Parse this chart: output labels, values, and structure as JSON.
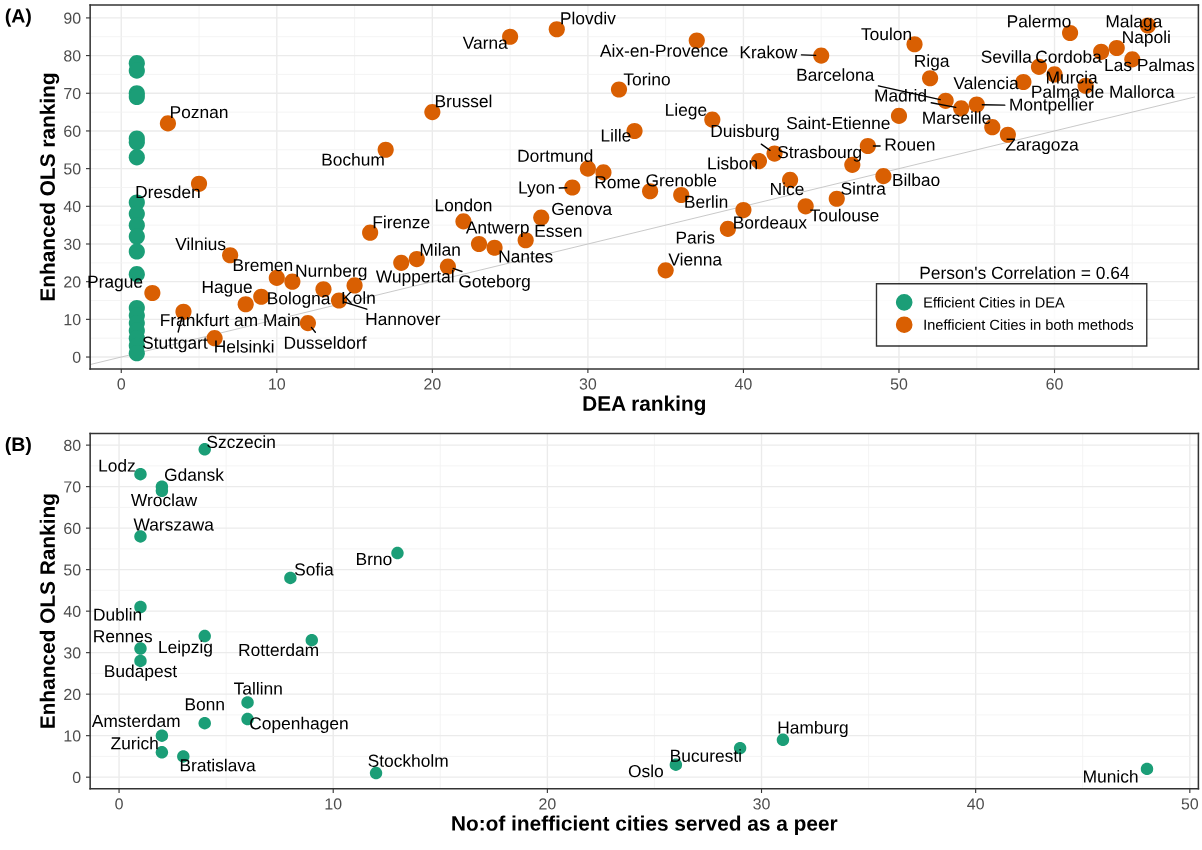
{
  "chart_data": [
    {
      "type": "scatter",
      "title": "(A)",
      "xlabel": "DEA ranking",
      "ylabel": "Enhanced OLS ranking",
      "xlim": [
        -2,
        69.25
      ],
      "ylim": [
        -3.15,
        93.4
      ],
      "xticks": [
        0,
        10,
        20,
        30,
        40,
        50,
        60
      ],
      "yticks": [
        0,
        10,
        20,
        30,
        40,
        50,
        60,
        70,
        80,
        90
      ],
      "grid": true,
      "legend": "bottom right",
      "marker": "circle",
      "series": [
        {
          "type": "line",
          "color": "#bebebe",
          "marker": "none",
          "x": [
            -2,
            69
          ],
          "values": [
            -2,
            69
          ]
        },
        {
          "name": "Efficient Cities in DEA",
          "color": "#1b9e77",
          "x": [
            1,
            1,
            1,
            1,
            1,
            1,
            1,
            1,
            1,
            1,
            1,
            1,
            1,
            1,
            1,
            1,
            1,
            1,
            1,
            1
          ],
          "values": [
            78,
            76,
            70,
            69,
            58,
            57,
            53,
            41,
            38,
            35,
            32,
            28,
            22,
            13,
            11,
            9,
            7,
            5,
            3,
            1
          ]
        },
        {
          "name": "Inefficient Cities in both methods",
          "color": "#d95f02",
          "x": [
            3,
            5,
            2,
            4,
            8,
            6,
            7,
            9,
            10,
            11,
            12,
            13,
            14,
            15,
            16,
            17,
            18,
            19,
            20,
            21,
            22,
            23,
            24,
            25,
            26,
            27,
            28,
            29,
            30,
            31,
            32,
            33,
            34,
            35,
            36,
            37,
            38,
            39,
            40,
            41,
            42,
            43,
            44,
            45,
            46,
            47,
            48,
            49,
            50,
            51,
            52,
            53,
            54,
            55,
            56,
            57,
            58,
            59,
            60,
            61,
            62,
            63,
            64,
            65,
            66
          ],
          "values": [
            62,
            46,
            17,
            12,
            14,
            5,
            27,
            16,
            21,
            20,
            9,
            18,
            15,
            19,
            33,
            55,
            25,
            26,
            65,
            24,
            36,
            30,
            29,
            85,
            31,
            37,
            87,
            45,
            50,
            49,
            71,
            60,
            44,
            23,
            43,
            84,
            63,
            34,
            39,
            52,
            54,
            47,
            40,
            80,
            42,
            51,
            56,
            48,
            64,
            83,
            74,
            68,
            66,
            67,
            61,
            59,
            73,
            77,
            75,
            86,
            72,
            81,
            82,
            79,
            88
          ]
        }
      ],
      "annotations": [
        {
          "text": "Poznan",
          "x": 3,
          "y": 62
        },
        {
          "text": "Dresden",
          "x": 5,
          "y": 46
        },
        {
          "text": "Prague",
          "x": 2,
          "y": 17
        },
        {
          "text": "Stuttgart",
          "x": 4,
          "y": 12
        },
        {
          "text": "Frankfurt am Main",
          "x": 8,
          "y": 14
        },
        {
          "text": "Helsinki",
          "x": 6,
          "y": 5
        },
        {
          "text": "Vilnius",
          "x": 7,
          "y": 27
        },
        {
          "text": "Hague",
          "x": 9,
          "y": 16
        },
        {
          "text": "Bremen",
          "x": 10,
          "y": 21
        },
        {
          "text": "Bologna",
          "x": 11,
          "y": 20
        },
        {
          "text": "Dusseldorf",
          "x": 12,
          "y": 9
        },
        {
          "text": "Nurnberg",
          "x": 13,
          "y": 18
        },
        {
          "text": "Hannover",
          "x": 14,
          "y": 15
        },
        {
          "text": "Koln",
          "x": 15,
          "y": 19
        },
        {
          "text": "Firenze",
          "x": 16,
          "y": 33
        },
        {
          "text": "Bochum",
          "x": 17,
          "y": 55
        },
        {
          "text": "Wuppertal",
          "x": 18,
          "y": 25
        },
        {
          "text": "Milan",
          "x": 19,
          "y": 26
        },
        {
          "text": "Brussel",
          "x": 20,
          "y": 65
        },
        {
          "text": "Goteborg",
          "x": 21,
          "y": 24
        },
        {
          "text": "London",
          "x": 22,
          "y": 36
        },
        {
          "text": "Antwerp",
          "x": 23,
          "y": 30
        },
        {
          "text": "Nantes",
          "x": 24,
          "y": 29
        },
        {
          "text": "Varna",
          "x": 25,
          "y": 85
        },
        {
          "text": "Essen",
          "x": 26,
          "y": 31
        },
        {
          "text": "Genova",
          "x": 27,
          "y": 37
        },
        {
          "text": "Plovdiv",
          "x": 28,
          "y": 87
        },
        {
          "text": "Lyon",
          "x": 29,
          "y": 45
        },
        {
          "text": "Dortmund",
          "x": 30,
          "y": 50
        },
        {
          "text": "Rome",
          "x": 31,
          "y": 49
        },
        {
          "text": "Torino",
          "x": 32,
          "y": 71
        },
        {
          "text": "Lille",
          "x": 33,
          "y": 60
        },
        {
          "text": "Grenoble",
          "x": 34,
          "y": 44
        },
        {
          "text": "Vienna",
          "x": 35,
          "y": 23
        },
        {
          "text": "Berlin",
          "x": 36,
          "y": 43
        },
        {
          "text": "Aix-en-Provence",
          "x": 37,
          "y": 84
        },
        {
          "text": "Liege",
          "x": 38,
          "y": 63
        },
        {
          "text": "Paris",
          "x": 39,
          "y": 34
        },
        {
          "text": "Bordeaux",
          "x": 40,
          "y": 39
        },
        {
          "text": "Lisbon",
          "x": 41,
          "y": 52
        },
        {
          "text": "Duisburg",
          "x": 42,
          "y": 54
        },
        {
          "text": "Nice",
          "x": 43,
          "y": 47
        },
        {
          "text": "Toulouse",
          "x": 44,
          "y": 40
        },
        {
          "text": "Krakow",
          "x": 45,
          "y": 80
        },
        {
          "text": "Sintra",
          "x": 46,
          "y": 42
        },
        {
          "text": "Strasbourg",
          "x": 47,
          "y": 51
        },
        {
          "text": "Rouen",
          "x": 48,
          "y": 56
        },
        {
          "text": "Bilbao",
          "x": 49,
          "y": 48
        },
        {
          "text": "Saint-Etienne",
          "x": 50,
          "y": 64
        },
        {
          "text": "Toulon",
          "x": 51,
          "y": 83
        },
        {
          "text": "Riga",
          "x": 52,
          "y": 74
        },
        {
          "text": "Barcelona",
          "x": 53,
          "y": 68
        },
        {
          "text": "Madrid",
          "x": 54,
          "y": 66
        },
        {
          "text": "Montpellier",
          "x": 55,
          "y": 67
        },
        {
          "text": "Marseille",
          "x": 56,
          "y": 61
        },
        {
          "text": "Zaragoza",
          "x": 57,
          "y": 59
        },
        {
          "text": "Valencia",
          "x": 58,
          "y": 73
        },
        {
          "text": "Sevilla",
          "x": 59,
          "y": 77
        },
        {
          "text": "Murcia",
          "x": 60,
          "y": 75
        },
        {
          "text": "Palermo",
          "x": 61,
          "y": 86
        },
        {
          "text": "Palma de Mallorca",
          "x": 62,
          "y": 72
        },
        {
          "text": "Cordoba",
          "x": 63,
          "y": 81
        },
        {
          "text": "Napoli",
          "x": 64,
          "y": 82
        },
        {
          "text": "Las Palmas",
          "x": 65,
          "y": 79
        },
        {
          "text": "Malaga",
          "x": 66,
          "y": 88
        },
        "Person's Correlation = 0.64"
      ]
    },
    {
      "type": "scatter",
      "title": "(B)",
      "xlabel": "No:of inefficient cities served as a peer",
      "ylabel": "Enhanced OLS Ranking",
      "xlim": [
        -1.35,
        50.4
      ],
      "ylim": [
        -2.8,
        82.8
      ],
      "xticks": [
        0,
        10,
        20,
        30,
        40,
        50
      ],
      "yticks": [
        0,
        10,
        20,
        30,
        40,
        50,
        60,
        70,
        80
      ],
      "grid": true,
      "marker": "circle",
      "series": [
        {
          "color": "#1b9e77",
          "x": [
            4,
            1,
            2,
            2,
            1,
            13,
            8,
            1,
            1,
            1,
            4,
            9,
            6,
            6,
            4,
            2,
            2,
            3,
            12,
            26,
            29,
            31,
            48
          ],
          "values": [
            79,
            73,
            70,
            69,
            58,
            54,
            48,
            41,
            31,
            28,
            34,
            33,
            18,
            14,
            13,
            10,
            6,
            5,
            1,
            3,
            7,
            9,
            2
          ]
        }
      ],
      "annotations": [
        {
          "text": "Szczecin",
          "x": 4,
          "y": 79
        },
        {
          "text": "Lodz",
          "x": 1,
          "y": 73
        },
        {
          "text": "Gdansk",
          "x": 2,
          "y": 70
        },
        {
          "text": "Wroclaw",
          "x": 2,
          "y": 69
        },
        {
          "text": "Warszawa",
          "x": 1,
          "y": 58
        },
        {
          "text": "Brno",
          "x": 13,
          "y": 54
        },
        {
          "text": "Sofia",
          "x": 8,
          "y": 48
        },
        {
          "text": "Dublin",
          "x": 1,
          "y": 41
        },
        {
          "text": "Rennes",
          "x": 1,
          "y": 31
        },
        {
          "text": "Budapest",
          "x": 1,
          "y": 28
        },
        {
          "text": "Leipzig",
          "x": 4,
          "y": 34
        },
        {
          "text": "Rotterdam",
          "x": 9,
          "y": 33
        },
        {
          "text": "Tallinn",
          "x": 6,
          "y": 18
        },
        {
          "text": "Copenhagen",
          "x": 6,
          "y": 14
        },
        {
          "text": "Bonn",
          "x": 4,
          "y": 13
        },
        {
          "text": "Amsterdam",
          "x": 2,
          "y": 10
        },
        {
          "text": "Zurich",
          "x": 2,
          "y": 6
        },
        {
          "text": "Bratislava",
          "x": 3,
          "y": 5
        },
        {
          "text": "Stockholm",
          "x": 12,
          "y": 1
        },
        {
          "text": "Oslo",
          "x": 26,
          "y": 3
        },
        {
          "text": "Bucuresti",
          "x": 29,
          "y": 7
        },
        {
          "text": "Hamburg",
          "x": 31,
          "y": 9
        },
        {
          "text": "Munich",
          "x": 48,
          "y": 2
        }
      ]
    }
  ]
}
